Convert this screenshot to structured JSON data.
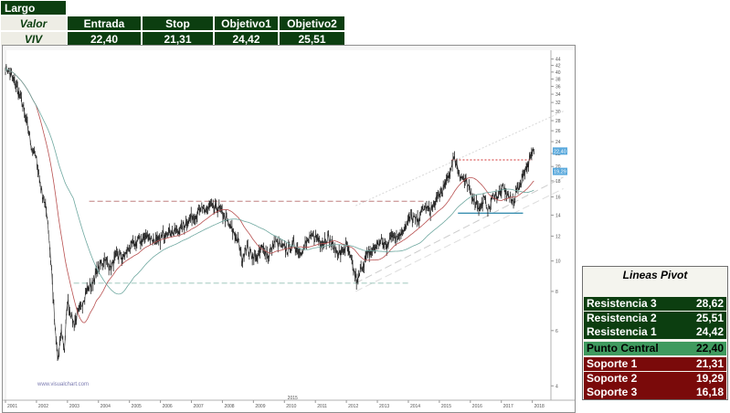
{
  "trade": {
    "direction": "Largo",
    "header_label": "Valor",
    "ticker": "VIV",
    "columns": [
      "Entrada",
      "Stop",
      "Objetivo1",
      "Objetivo2"
    ],
    "values": [
      "22,40",
      "21,31",
      "24,42",
      "25,51"
    ]
  },
  "chart_data": {
    "type": "candlestick",
    "x_ticks": [
      "2001",
      "2002",
      "2003",
      "2004",
      "2005",
      "2006",
      "2007",
      "2008",
      "2009",
      "2010",
      "2011",
      "2012",
      "2013",
      "2014",
      "2015",
      "2016",
      "2017",
      "2018"
    ],
    "y_scale": "log",
    "y_ticks": [
      4,
      6,
      8,
      10,
      12,
      14,
      16,
      18,
      20,
      22,
      24,
      26,
      28,
      30,
      32,
      34,
      36,
      38,
      40,
      42,
      44
    ],
    "y_range": [
      3.6,
      46
    ],
    "price_labels": [
      "22,40",
      "19,29"
    ],
    "bottom_label": "2015",
    "watermark": "www.visualchart.com",
    "close_path": [
      [
        2001.0,
        41.5
      ],
      [
        2001.15,
        39.5
      ],
      [
        2001.3,
        37.0
      ],
      [
        2001.5,
        33.0
      ],
      [
        2001.7,
        27.0
      ],
      [
        2001.85,
        23.0
      ],
      [
        2002.0,
        21.0
      ],
      [
        2002.15,
        17.0
      ],
      [
        2002.35,
        14.0
      ],
      [
        2002.5,
        9.0
      ],
      [
        2002.6,
        6.0
      ],
      [
        2002.7,
        4.8
      ],
      [
        2002.8,
        6.0
      ],
      [
        2002.9,
        5.2
      ],
      [
        2003.0,
        7.5
      ],
      [
        2003.2,
        6.3
      ],
      [
        2003.4,
        7.0
      ],
      [
        2003.6,
        8.0
      ],
      [
        2003.8,
        8.5
      ],
      [
        2004.0,
        9.5
      ],
      [
        2004.2,
        10.2
      ],
      [
        2004.4,
        9.5
      ],
      [
        2004.6,
        10.5
      ],
      [
        2004.8,
        10.2
      ],
      [
        2005.0,
        11.0
      ],
      [
        2005.3,
        11.6
      ],
      [
        2005.6,
        12.0
      ],
      [
        2005.9,
        11.5
      ],
      [
        2006.2,
        12.5
      ],
      [
        2006.5,
        12.3
      ],
      [
        2006.8,
        13.2
      ],
      [
        2007.1,
        14.0
      ],
      [
        2007.4,
        14.6
      ],
      [
        2007.65,
        14.8
      ],
      [
        2007.9,
        14.7
      ],
      [
        2008.1,
        13.6
      ],
      [
        2008.3,
        12.6
      ],
      [
        2008.5,
        11.6
      ],
      [
        2008.65,
        10.0
      ],
      [
        2008.75,
        11.2
      ],
      [
        2008.9,
        10.6
      ],
      [
        2009.1,
        10.2
      ],
      [
        2009.3,
        11.0
      ],
      [
        2009.5,
        10.4
      ],
      [
        2009.7,
        11.6
      ],
      [
        2009.9,
        11.1
      ],
      [
        2010.1,
        10.8
      ],
      [
        2010.3,
        11.3
      ],
      [
        2010.5,
        10.7
      ],
      [
        2010.8,
        11.7
      ],
      [
        2011.0,
        12.0
      ],
      [
        2011.2,
        11.4
      ],
      [
        2011.4,
        11.9
      ],
      [
        2011.6,
        11.0
      ],
      [
        2011.8,
        10.5
      ],
      [
        2012.0,
        11.2
      ],
      [
        2012.15,
        10.0
      ],
      [
        2012.35,
        8.5
      ],
      [
        2012.5,
        9.6
      ],
      [
        2012.7,
        10.5
      ],
      [
        2012.9,
        11.0
      ],
      [
        2013.1,
        11.6
      ],
      [
        2013.3,
        11.2
      ],
      [
        2013.5,
        12.2
      ],
      [
        2013.7,
        12.0
      ],
      [
        2013.9,
        13.0
      ],
      [
        2014.1,
        13.8
      ],
      [
        2014.3,
        13.4
      ],
      [
        2014.5,
        14.8
      ],
      [
        2014.7,
        14.4
      ],
      [
        2014.9,
        15.6
      ],
      [
        2015.1,
        16.8
      ],
      [
        2015.3,
        18.5
      ],
      [
        2015.45,
        21.2
      ],
      [
        2015.55,
        20.5
      ],
      [
        2015.7,
        18.5
      ],
      [
        2015.85,
        17.8
      ],
      [
        2016.0,
        16.5
      ],
      [
        2016.15,
        15.6
      ],
      [
        2016.3,
        14.8
      ],
      [
        2016.45,
        15.7
      ],
      [
        2016.6,
        14.6
      ],
      [
        2016.75,
        16.3
      ],
      [
        2016.9,
        16.2
      ],
      [
        2017.05,
        17.0
      ],
      [
        2017.2,
        16.4
      ],
      [
        2017.35,
        15.4
      ],
      [
        2017.5,
        16.8
      ],
      [
        2017.65,
        18.0
      ],
      [
        2017.75,
        19.5
      ],
      [
        2017.85,
        20.2
      ],
      [
        2017.95,
        21.5
      ],
      [
        2018.05,
        22.4
      ]
    ],
    "levels": [
      {
        "name": "upper-resistance-dashed",
        "y": 15.5,
        "x": [
          2003.7,
          2014.6
        ],
        "color": "#c08080",
        "dash": "6,3"
      },
      {
        "name": "lower-support-dashed",
        "y": 8.5,
        "x": [
          2003.2,
          2014.0
        ],
        "color": "#9fc7bd",
        "dash": "6,3"
      },
      {
        "name": "recent-resistance-dotted",
        "y": 21.0,
        "x": [
          2015.4,
          2018.0
        ],
        "color": "#d03030",
        "dash": "2,2"
      },
      {
        "name": "recent-support-solid",
        "y": 14.2,
        "x": [
          2015.6,
          2017.7
        ],
        "color": "#3a8fb0",
        "dash": ""
      }
    ],
    "trend_lines": [
      {
        "name": "upper-channel",
        "from": [
          2012.3,
          15.0
        ],
        "to": [
          2019.0,
          30.0
        ],
        "color": "#d8d8d8",
        "dash": "2,2"
      },
      {
        "name": "mid-channel",
        "from": [
          2012.3,
          8.5
        ],
        "to": [
          2019.0,
          18.5
        ],
        "color": "#cccccc",
        "dash": "8,4"
      },
      {
        "name": "lower-channel",
        "from": [
          2012.3,
          8.0
        ],
        "to": [
          2019.0,
          17.0
        ],
        "color": "#dddddd",
        "dash": "8,4"
      }
    ],
    "colors": {
      "candles": "#222222",
      "ma_red": "#b85050",
      "ma_teal": "#6fa8a0",
      "price_label_bg": "#5aa9dc"
    }
  },
  "pivot": {
    "title": "Lineas Pivot",
    "rows": [
      {
        "kind": "res",
        "label": "Resistencia 3",
        "value": "28,62"
      },
      {
        "kind": "res",
        "label": "Resistencia 2",
        "value": "25,51"
      },
      {
        "kind": "res",
        "label": "Resistencia 1",
        "value": "24,42"
      },
      {
        "kind": "pc",
        "label": "Punto Central",
        "value": "22,40"
      },
      {
        "kind": "sup",
        "label": "Soporte 1",
        "value": "21,31"
      },
      {
        "kind": "sup",
        "label": "Soporte 2",
        "value": "19,29"
      },
      {
        "kind": "sup",
        "label": "Soporte 3",
        "value": "16,18"
      }
    ]
  }
}
